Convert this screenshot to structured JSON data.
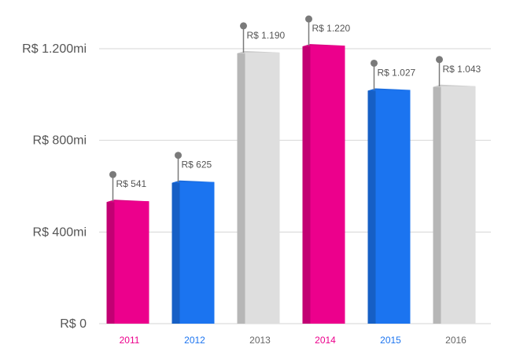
{
  "chart_data": {
    "type": "bar",
    "title": "",
    "xlabel": "",
    "ylabel": "",
    "categories": [
      "2011",
      "2012",
      "2013",
      "2014",
      "2015",
      "2016"
    ],
    "values": [
      541,
      625,
      1190,
      1220,
      1027,
      1043
    ],
    "data_labels": [
      "R$ 541",
      "R$ 625",
      "R$ 1.190",
      "R$ 1.220",
      "R$ 1.027",
      "R$ 1.043"
    ],
    "ylim": [
      0,
      1200
    ],
    "yticks": [
      0,
      400,
      800,
      1200
    ],
    "ytick_labels": [
      "R$ 0",
      "R$ 400mi",
      "R$ 800mi",
      "R$ 1.200mi"
    ],
    "grid": true,
    "legend": "none",
    "colors": [
      "#ec008c",
      "#1b74f0",
      "#dedede",
      "#ec008c",
      "#1b74f0",
      "#dedede"
    ],
    "label_colors": [
      "#ec008c",
      "#1b74f0",
      "#666666",
      "#ec008c",
      "#1b74f0",
      "#666666"
    ],
    "style": "3d"
  }
}
